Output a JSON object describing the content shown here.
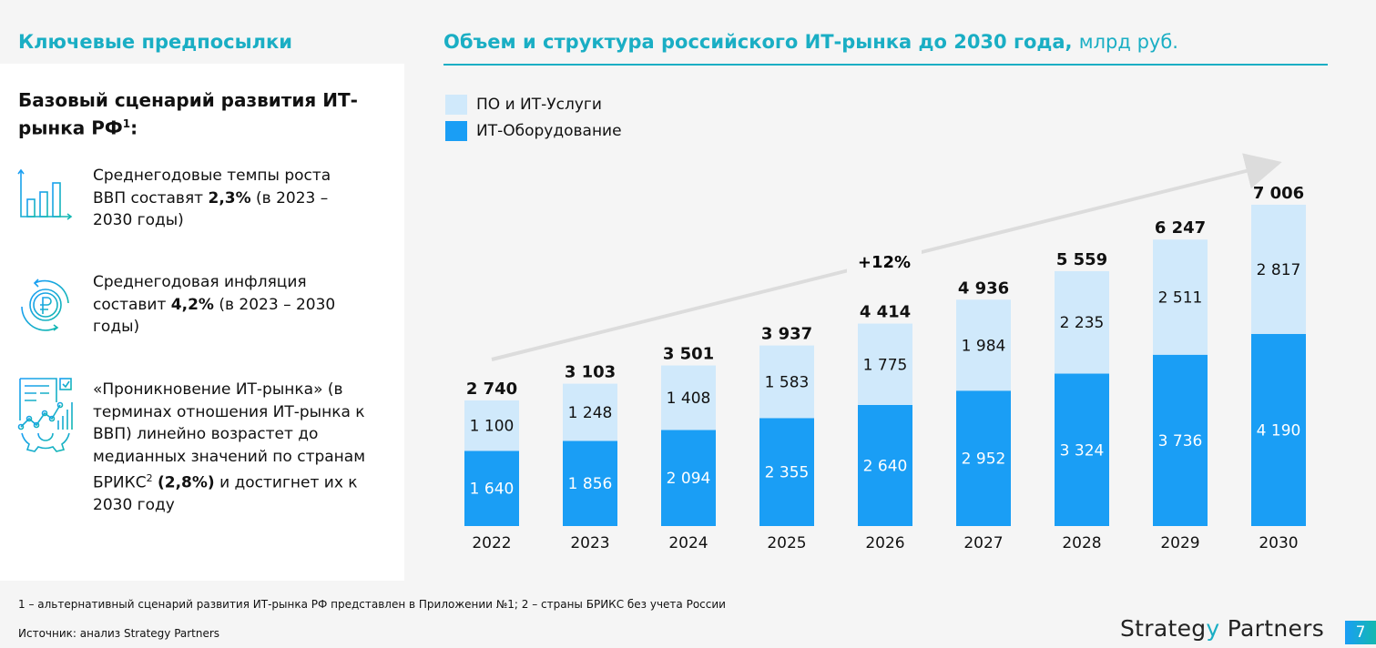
{
  "left": {
    "heading": "Ключевые предпосылки",
    "panel_title": "Базовый сценарий развития ИТ-рынка РФ",
    "panel_title_sup": "1",
    "panel_title_end": ":",
    "items": [
      {
        "icon": "bar-chart-icon",
        "pre": "Среднегодовые темпы роста ВВП составят ",
        "bold": "2,3%",
        "post": " (в 2023 – 2030 годы)"
      },
      {
        "icon": "ruble-cycle-icon",
        "pre": "Среднегодовая инфляция составит ",
        "bold": "4,2%",
        "post": " (в 2023 – 2030 годы)"
      },
      {
        "icon": "analytics-gear-icon",
        "pre": "«Проникновение ИТ-рынка» (в терминах отношения ИТ-рынка к ВВП) линейно возрастет до медианных значений по странам БРИКС",
        "sup": "2",
        "bold": "(2,8%)",
        "post": " и достигнет их к 2030 году"
      }
    ]
  },
  "chart_data": {
    "type": "bar",
    "stacked": true,
    "title": "Объем и структура российского ИТ-рынка до 2030 года,",
    "title_unit": "млрд руб.",
    "categories": [
      "2022",
      "2023",
      "2024",
      "2025",
      "2026",
      "2027",
      "2028",
      "2029",
      "2030"
    ],
    "series": [
      {
        "name": "ИТ-Оборудование",
        "color": "#1a9ef5",
        "values": [
          1640,
          1856,
          2094,
          2355,
          2640,
          2952,
          3324,
          3736,
          4190
        ]
      },
      {
        "name": "ПО и ИТ-Услуги",
        "color": "#d0e9fb",
        "values": [
          1100,
          1248,
          1408,
          1583,
          1775,
          1984,
          2235,
          2511,
          2817
        ]
      }
    ],
    "totals": [
      2740,
      3103,
      3501,
      3937,
      4414,
      4936,
      5559,
      6247,
      7006
    ],
    "annotation": "+12%",
    "legend_position": "top-left",
    "grid": false
  },
  "footnote": "1 – альтернативный сценарий развития ИТ-рынка РФ представлен в Приложении №1; 2 – страны БРИКС без учета России",
  "source": "Источник: анализ Strategy Partners",
  "logo": {
    "a": "Strateg",
    "b": "y",
    "c": " Partners"
  },
  "page_number": "7",
  "colors": {
    "accent": "#1aaec4",
    "dark_bar": "#1a9ef5",
    "light_bar": "#d0e9fb"
  }
}
